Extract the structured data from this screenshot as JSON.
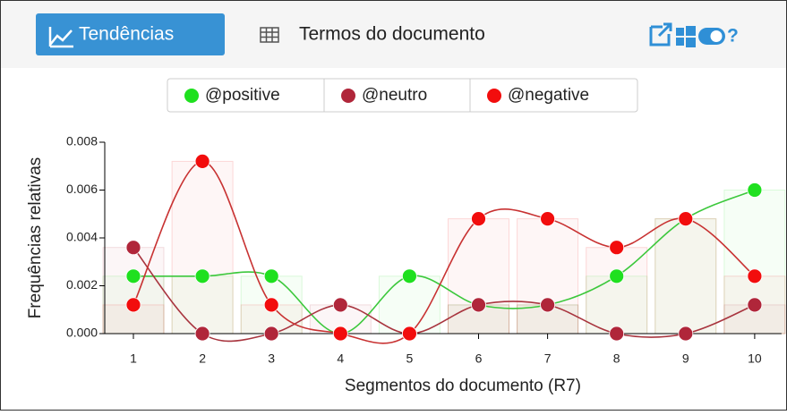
{
  "tabs": [
    "Tendências",
    "Termos do documento"
  ],
  "help": "?",
  "chart_data": {
    "type": "line",
    "x_label": "Segmentos do documento (R7)",
    "y_label": "Frequências relativas",
    "categories": [
      "1",
      "2",
      "3",
      "4",
      "5",
      "6",
      "7",
      "8",
      "9",
      "10"
    ],
    "series": [
      {
        "name": "@positive",
        "color": "#1fe01f",
        "line_color": "#3cc83c",
        "values": [
          0.0024,
          0.0024,
          0.0024,
          0,
          0.0024,
          0.0012,
          0.0012,
          0.0024,
          0.0048,
          0.006
        ]
      },
      {
        "name": "@neutro",
        "color": "#b0263a",
        "line_color": "#a8343e",
        "values": [
          0.0036,
          0,
          0,
          0.0012,
          0,
          0.0012,
          0.0012,
          0,
          0,
          0.0012
        ]
      },
      {
        "name": "@negative",
        "color": "#f20d0d",
        "line_color": "#c83232",
        "values": [
          0.0012,
          0.0072,
          0.0012,
          0,
          0,
          0.0048,
          0.0048,
          0.0036,
          0.0048,
          0.0024
        ]
      }
    ],
    "ylim": [
      0,
      0.008
    ],
    "yticks": [
      {
        "value": 0,
        "label": "0.000"
      },
      {
        "value": 0.002,
        "label": "0.002"
      },
      {
        "value": 0.004,
        "label": "0.004"
      },
      {
        "value": 0.006,
        "label": "0.006"
      },
      {
        "value": 0.008,
        "label": "0.008"
      }
    ],
    "smooth": true,
    "bars": true,
    "legend": "top"
  }
}
